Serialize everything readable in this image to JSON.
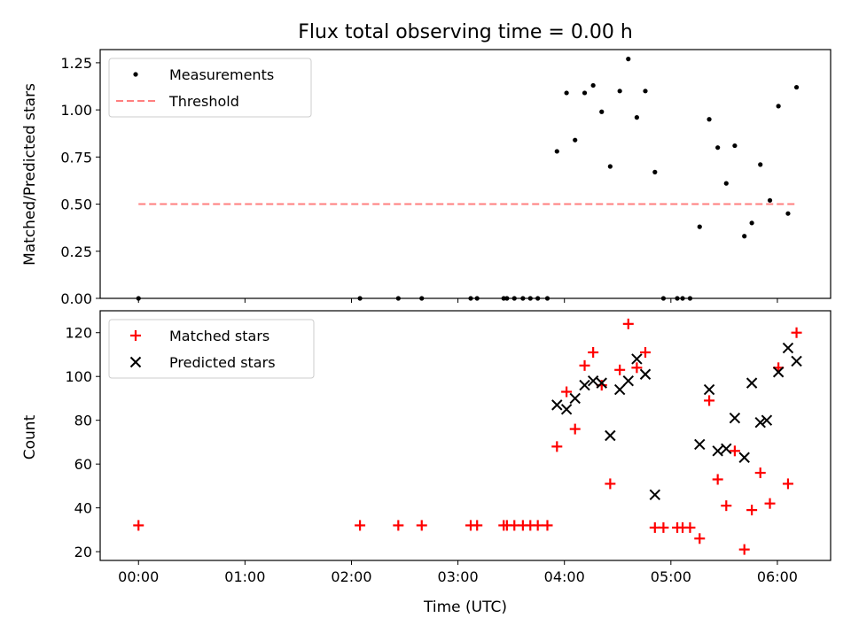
{
  "figure": {
    "title": "Flux total observing time = 0.00 h",
    "xlabel": "Time (UTC)"
  },
  "colors": {
    "measurements": "#000000",
    "threshold": "#ff7f7f",
    "matched": "#ff0000",
    "predicted": "#000000"
  },
  "chart_data": [
    {
      "type": "scatter",
      "ylabel": "Matched/Predicted stars",
      "xlim": [
        -0.36,
        6.5
      ],
      "ylim": [
        0.0,
        1.32
      ],
      "xticks": [
        0,
        1,
        2,
        3,
        4,
        5,
        6
      ],
      "yticks": [
        0.0,
        0.25,
        0.5,
        0.75,
        1.0,
        1.25
      ],
      "ytick_labels": [
        "0.00",
        "0.25",
        "0.50",
        "0.75",
        "1.00",
        "1.25"
      ],
      "legend": {
        "placement": "upper-left",
        "entries": [
          "Measurements",
          "Threshold"
        ]
      },
      "series": [
        {
          "name": "Measurements",
          "x": [
            0.0,
            2.08,
            2.44,
            2.66,
            3.12,
            3.18,
            3.43,
            3.46,
            3.53,
            3.61,
            3.68,
            3.75,
            3.84,
            3.93,
            4.02,
            4.1,
            4.19,
            4.27,
            4.35,
            4.43,
            4.52,
            4.6,
            4.68,
            4.76,
            4.85,
            4.93,
            5.06,
            5.11,
            5.18,
            5.27,
            5.36,
            5.44,
            5.52,
            5.6,
            5.69,
            5.76,
            5.84,
            5.93,
            6.01,
            6.1,
            6.18
          ],
          "y": [
            0.0,
            0.0,
            0.0,
            0.0,
            0.0,
            0.0,
            0.0,
            0.0,
            0.0,
            0.0,
            0.0,
            0.0,
            0.0,
            0.78,
            1.09,
            0.84,
            1.09,
            1.13,
            0.99,
            0.7,
            1.1,
            1.27,
            0.96,
            1.1,
            0.67,
            0.0,
            0.0,
            0.0,
            0.0,
            0.38,
            0.95,
            0.8,
            0.61,
            0.81,
            0.33,
            0.4,
            0.71,
            0.52,
            1.02,
            0.45,
            1.12
          ]
        },
        {
          "name": "Threshold",
          "style": "dashed",
          "x": [
            0.0,
            6.18
          ],
          "y": [
            0.5,
            0.5
          ]
        }
      ]
    },
    {
      "type": "scatter",
      "ylabel": "Count",
      "xlim": [
        -0.36,
        6.5
      ],
      "ylim": [
        16,
        130
      ],
      "xticks": [
        0,
        1,
        2,
        3,
        4,
        5,
        6
      ],
      "xtick_labels": [
        "00:00",
        "01:00",
        "02:00",
        "03:00",
        "04:00",
        "05:00",
        "06:00"
      ],
      "yticks": [
        20,
        40,
        60,
        80,
        100,
        120
      ],
      "ytick_labels": [
        "20",
        "40",
        "60",
        "80",
        "100",
        "120"
      ],
      "legend": {
        "placement": "upper-left",
        "entries": [
          "Matched stars",
          "Predicted stars"
        ]
      },
      "series": [
        {
          "name": "Matched stars",
          "marker": "+",
          "x": [
            0.0,
            2.08,
            2.44,
            2.66,
            3.12,
            3.18,
            3.43,
            3.46,
            3.53,
            3.61,
            3.68,
            3.75,
            3.84,
            3.93,
            4.02,
            4.1,
            4.19,
            4.27,
            4.35,
            4.43,
            4.52,
            4.6,
            4.68,
            4.76,
            4.85,
            4.93,
            5.06,
            5.11,
            5.18,
            5.27,
            5.36,
            5.44,
            5.52,
            5.6,
            5.69,
            5.76,
            5.84,
            5.93,
            6.01,
            6.1,
            6.18
          ],
          "y": [
            32,
            32,
            32,
            32,
            32,
            32,
            32,
            32,
            32,
            32,
            32,
            32,
            32,
            68,
            93,
            76,
            105,
            111,
            96,
            51,
            103,
            124,
            104,
            111,
            31,
            31,
            31,
            31,
            31,
            26,
            89,
            53,
            41,
            66,
            21,
            39,
            56,
            42,
            104,
            51,
            120
          ]
        },
        {
          "name": "Predicted stars",
          "marker": "x",
          "x": [
            3.93,
            4.02,
            4.1,
            4.19,
            4.27,
            4.35,
            4.43,
            4.52,
            4.6,
            4.68,
            4.76,
            4.85,
            5.27,
            5.36,
            5.44,
            5.52,
            5.6,
            5.69,
            5.76,
            5.84,
            5.9,
            6.01,
            6.1,
            6.18
          ],
          "y": [
            87,
            85,
            90,
            96,
            98,
            97,
            73,
            94,
            98,
            108,
            101,
            46,
            69,
            94,
            66,
            67,
            81,
            63,
            97,
            79,
            80,
            102,
            113,
            107
          ]
        }
      ]
    }
  ]
}
